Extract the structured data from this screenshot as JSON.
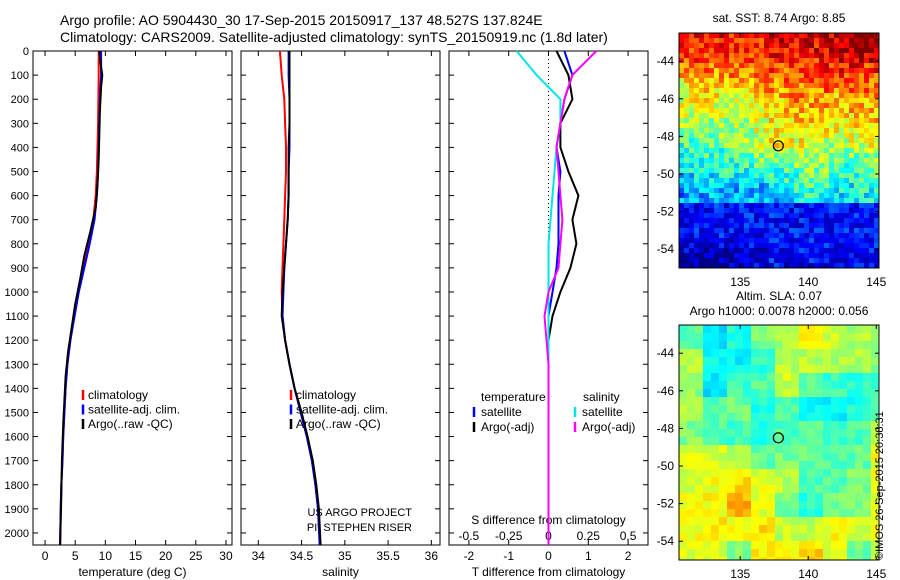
{
  "header": {
    "line1": "Argo profile: AO 5904430_30 17-Sep-2015 20150917_137 48.527S 137.824E",
    "line2": "Climatology: CARS2009. Satellite-adjusted climatology: synTS_20150919.nc (1.8d later)"
  },
  "watermark": "©IMOS 26-Sep-2015 20:38:31",
  "colors": {
    "climatology": "#ff0000",
    "satellite": "#0000ff",
    "argo": "#000000",
    "salinity_sat": "#00e5e5",
    "salinity_argo": "#ff00ff"
  },
  "chart_data": [
    {
      "type": "line",
      "xlabel": "temperature (deg C)",
      "ylabel": "",
      "xlim": [
        -2,
        31
      ],
      "ylim": [
        2050,
        0
      ],
      "xticks": [
        0,
        5,
        10,
        15,
        20,
        25,
        30
      ],
      "yticks": [
        0,
        100,
        200,
        300,
        400,
        500,
        600,
        700,
        800,
        900,
        1000,
        1100,
        1200,
        1300,
        1400,
        1500,
        1600,
        1700,
        1800,
        1900,
        2000
      ],
      "legend": [
        "climatology",
        "satellite-adj. clim.",
        "Argo(..raw -QC)"
      ],
      "series": [
        {
          "name": "climatology",
          "color": "#ff0000",
          "x": [
            8.9,
            8.9,
            8.85,
            8.8,
            8.7,
            8.6,
            8.4,
            8.0,
            7.2,
            6.3,
            5.5,
            4.8,
            4.2,
            3.7,
            3.4,
            3.2,
            3.0,
            2.9,
            2.7,
            2.6,
            2.5
          ],
          "y": [
            0,
            100,
            200,
            300,
            400,
            500,
            600,
            700,
            800,
            900,
            1000,
            1100,
            1200,
            1300,
            1400,
            1500,
            1600,
            1700,
            1800,
            1900,
            2050
          ]
        },
        {
          "name": "satellite-adj. clim.",
          "color": "#0000ff",
          "x": [
            9.3,
            9.3,
            9.1,
            9.0,
            8.9,
            8.8,
            8.6,
            8.2,
            7.4,
            6.5,
            5.6,
            4.9,
            4.2,
            3.7,
            3.4,
            3.2,
            3.0,
            2.9,
            2.7,
            2.6,
            2.5
          ],
          "y": [
            0,
            100,
            200,
            300,
            400,
            500,
            600,
            700,
            800,
            900,
            1000,
            1100,
            1200,
            1300,
            1400,
            1500,
            1600,
            1700,
            1800,
            1900,
            2050
          ]
        },
        {
          "name": "Argo(..raw -QC)",
          "color": "#000000",
          "x": [
            9.0,
            9.2,
            9.5,
            9.3,
            9.1,
            9.0,
            8.9,
            8.7,
            8.4,
            7.5,
            6.5,
            5.8,
            5.0,
            4.4,
            3.8,
            3.4,
            3.2,
            3.0,
            2.8,
            2.7,
            2.6,
            2.5
          ],
          "y": [
            0,
            50,
            100,
            150,
            250,
            350,
            450,
            550,
            650,
            750,
            850,
            950,
            1050,
            1150,
            1250,
            1350,
            1450,
            1550,
            1700,
            1850,
            1950,
            2050
          ]
        }
      ]
    },
    {
      "type": "line",
      "xlabel": "salinity",
      "xlim": [
        33.8,
        36.1
      ],
      "ylim": [
        2050,
        0
      ],
      "xticks": [
        34,
        34.5,
        35,
        35.5,
        36
      ],
      "legend": [
        "climatology",
        "satellite-adj. clim.",
        "Argo(..raw -QC)"
      ],
      "annotation": [
        "US ARGO PROJECT",
        "PI: STEPHEN RISER"
      ],
      "series": [
        {
          "name": "climatology",
          "color": "#ff0000",
          "x": [
            34.25,
            34.27,
            34.3,
            34.31,
            34.32,
            34.32,
            34.31,
            34.3,
            34.29,
            34.28,
            34.27,
            34.28,
            34.31,
            34.36,
            34.42,
            34.49,
            34.56,
            34.62,
            34.66,
            34.69,
            34.71
          ],
          "y": [
            0,
            100,
            200,
            300,
            400,
            500,
            600,
            700,
            800,
            900,
            1000,
            1100,
            1200,
            1300,
            1400,
            1500,
            1600,
            1700,
            1800,
            1900,
            2050
          ]
        },
        {
          "name": "satellite-adj. clim.",
          "color": "#0000ff",
          "x": [
            34.35,
            34.35,
            34.36,
            34.36,
            34.36,
            34.35,
            34.35,
            34.34,
            34.32,
            34.3,
            34.29,
            34.28,
            34.31,
            34.36,
            34.42,
            34.49,
            34.56,
            34.62,
            34.66,
            34.69,
            34.71
          ],
          "y": [
            0,
            100,
            200,
            300,
            400,
            500,
            600,
            700,
            800,
            900,
            1000,
            1100,
            1200,
            1300,
            1400,
            1500,
            1600,
            1700,
            1800,
            1900,
            2050
          ]
        },
        {
          "name": "Argo(..raw -QC)",
          "color": "#000000",
          "x": [
            34.36,
            34.36,
            34.36,
            34.36,
            34.35,
            34.35,
            34.35,
            34.34,
            34.32,
            34.3,
            34.28,
            34.27,
            34.31,
            34.36,
            34.42,
            34.5,
            34.57,
            34.63,
            34.67,
            34.7,
            34.72
          ],
          "y": [
            0,
            100,
            200,
            300,
            400,
            500,
            600,
            700,
            800,
            900,
            1000,
            1100,
            1200,
            1300,
            1400,
            1500,
            1600,
            1700,
            1800,
            1900,
            2050
          ]
        }
      ]
    },
    {
      "type": "line",
      "xlabel": "T difference from climatology",
      "xlabel_top": "S difference from climatology",
      "xlim": [
        -2.5,
        2.5
      ],
      "ylim": [
        2050,
        0
      ],
      "xticks": [
        -2,
        -1,
        0,
        1,
        2
      ],
      "xticks_s": [
        -0.5,
        -0.25,
        0,
        0.25,
        0.5
      ],
      "legend_t_title": "temperature",
      "legend_s_title": "salinity",
      "legend_t": [
        "satellite",
        "Argo(-adj)"
      ],
      "legend_s": [
        "satellite",
        "Argo(-adj)"
      ],
      "series": [
        {
          "name": "temperature satellite",
          "color": "#0000ff",
          "x": [
            0.4,
            0.6,
            0.4,
            0.3,
            0.2,
            0.3,
            0.25,
            0.25,
            0.25,
            0.2,
            0.1,
            0.0,
            0.0,
            0.0,
            0.0,
            0.0,
            0.0,
            0.0,
            0.0,
            0.0,
            0.0
          ],
          "y": [
            0,
            100,
            200,
            300,
            400,
            500,
            600,
            700,
            800,
            900,
            1000,
            1100,
            1200,
            1300,
            1400,
            1500,
            1600,
            1700,
            1800,
            1900,
            2050
          ]
        },
        {
          "name": "temperature Argo(-adj)",
          "color": "#000000",
          "x": [
            0.2,
            0.5,
            0.6,
            0.3,
            0.3,
            0.5,
            0.75,
            0.6,
            0.7,
            0.55,
            0.3,
            0.1,
            0.0,
            0.0,
            0.0,
            0.0,
            0.0,
            0.0,
            0.0,
            0.0,
            0.0
          ],
          "y": [
            0,
            100,
            200,
            300,
            400,
            500,
            600,
            700,
            800,
            900,
            1000,
            1100,
            1200,
            1300,
            1400,
            1500,
            1600,
            1700,
            1800,
            1900,
            2050
          ]
        },
        {
          "name": "salinity satellite",
          "color": "#00e5e5",
          "x": [
            -0.8,
            -0.3,
            0.3,
            0.3,
            0.2,
            0.15,
            0.1,
            0.05,
            0.0,
            0.0,
            0.0,
            0.0,
            0.0,
            0.0,
            0.0,
            0.0,
            0.0,
            0.0,
            0.0,
            0.0,
            0.0
          ],
          "y": [
            0,
            100,
            200,
            300,
            400,
            500,
            600,
            700,
            800,
            900,
            1000,
            1100,
            1200,
            1300,
            1400,
            1500,
            1600,
            1700,
            1800,
            1900,
            2050
          ]
        },
        {
          "name": "salinity Argo(-adj)",
          "color": "#ff00ff",
          "x": [
            1.2,
            0.6,
            0.4,
            0.3,
            0.2,
            0.25,
            0.3,
            0.35,
            0.3,
            0.25,
            0.0,
            -0.1,
            -0.05,
            0.0,
            0.0,
            0.0,
            0.0,
            0.0,
            0.0,
            0.0,
            0.0
          ],
          "y": [
            0,
            100,
            200,
            300,
            400,
            500,
            600,
            700,
            800,
            900,
            1000,
            1100,
            1200,
            1300,
            1400,
            1500,
            1600,
            1700,
            1800,
            1900,
            2050
          ]
        }
      ]
    },
    {
      "type": "heatmap",
      "title": "sat. SST: 8.74  Argo: 8.85",
      "xlim": [
        130.5,
        145.2
      ],
      "ylim": [
        -55,
        -42.5
      ],
      "xticks": [
        135,
        140,
        145
      ],
      "yticks": [
        -44,
        -46,
        -48,
        -50,
        -52,
        -54
      ],
      "marker": {
        "lon": 137.8,
        "lat": -48.5
      }
    },
    {
      "type": "heatmap",
      "title_lines": [
        "Altim. SLA: 0.07",
        "Argo h1000: 0.0078 h2000: 0.056"
      ],
      "xlim": [
        130.5,
        145.2
      ],
      "ylim": [
        -55,
        -42.5
      ],
      "xticks": [
        135,
        140,
        145
      ],
      "yticks": [
        -44,
        -46,
        -48,
        -50,
        -52,
        -54
      ],
      "marker": {
        "lon": 137.8,
        "lat": -48.5
      }
    }
  ]
}
